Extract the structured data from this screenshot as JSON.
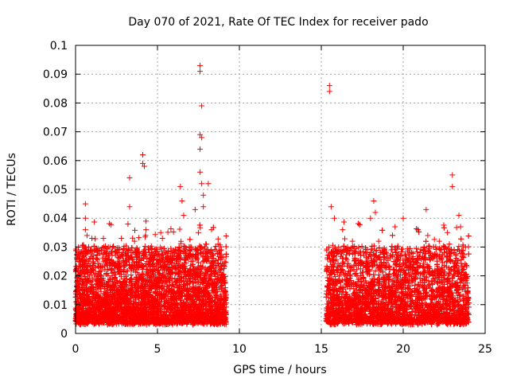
{
  "chart_data": {
    "type": "scatter",
    "title": "Day 070 of 2021, Rate Of TEC Index for receiver pado",
    "xlabel": "GPS time / hours",
    "ylabel": "ROTI / TECUs",
    "xlim": [
      0,
      25
    ],
    "ylim": [
      0,
      0.1
    ],
    "xticks": [
      0,
      5,
      10,
      15,
      20,
      25
    ],
    "xtick_labels": [
      "0",
      "5",
      "10",
      "15",
      "20",
      "25"
    ],
    "yticks": [
      0,
      0.01,
      0.02,
      0.03,
      0.04,
      0.05,
      0.06,
      0.07,
      0.08,
      0.09,
      0.1
    ],
    "ytick_labels": [
      "0",
      "0.01",
      "0.02",
      "0.03",
      "0.04",
      "0.05",
      "0.06",
      "0.07",
      "0.08",
      "0.09",
      "0.1"
    ],
    "grid": true,
    "marker": "+",
    "color": "#ff0000",
    "data_segments": [
      {
        "x_start": 0.0,
        "x_end": 9.2
      },
      {
        "x_start": 15.3,
        "x_end": 24.0
      }
    ],
    "series": [
      {
        "name": "ROTI",
        "points": [
          [
            0.2,
            0.025
          ],
          [
            0.6,
            0.045
          ],
          [
            0.6,
            0.04
          ],
          [
            0.6,
            0.036
          ],
          [
            0.7,
            0.034
          ],
          [
            1.0,
            0.033
          ],
          [
            1.7,
            0.033
          ],
          [
            2.0,
            0.03
          ],
          [
            2.8,
            0.033
          ],
          [
            3.2,
            0.038
          ],
          [
            3.3,
            0.044
          ],
          [
            3.3,
            0.054
          ],
          [
            3.6,
            0.032
          ],
          [
            4.1,
            0.062
          ],
          [
            4.1,
            0.059
          ],
          [
            4.2,
            0.058
          ],
          [
            4.3,
            0.039
          ],
          [
            4.3,
            0.036
          ],
          [
            5.2,
            0.035
          ],
          [
            5.3,
            0.033
          ],
          [
            5.8,
            0.027
          ],
          [
            6.4,
            0.051
          ],
          [
            6.5,
            0.046
          ],
          [
            6.6,
            0.041
          ],
          [
            7.0,
            0.03
          ],
          [
            7.3,
            0.043
          ],
          [
            7.5,
            0.035
          ],
          [
            7.6,
            0.093
          ],
          [
            7.6,
            0.091
          ],
          [
            7.7,
            0.079
          ],
          [
            7.6,
            0.069
          ],
          [
            7.7,
            0.068
          ],
          [
            7.6,
            0.064
          ],
          [
            7.6,
            0.056
          ],
          [
            7.7,
            0.052
          ],
          [
            7.8,
            0.048
          ],
          [
            7.8,
            0.044
          ],
          [
            8.1,
            0.052
          ],
          [
            8.3,
            0.036
          ],
          [
            8.7,
            0.031
          ],
          [
            8.9,
            0.029
          ],
          [
            15.5,
            0.086
          ],
          [
            15.5,
            0.084
          ],
          [
            15.6,
            0.044
          ],
          [
            15.8,
            0.04
          ],
          [
            16.3,
            0.036
          ],
          [
            16.6,
            0.03
          ],
          [
            16.9,
            0.032
          ],
          [
            18.0,
            0.04
          ],
          [
            18.2,
            0.046
          ],
          [
            18.3,
            0.042
          ],
          [
            18.5,
            0.032
          ],
          [
            19.5,
            0.037
          ],
          [
            20.0,
            0.04
          ],
          [
            20.4,
            0.028
          ],
          [
            20.9,
            0.036
          ],
          [
            21.4,
            0.043
          ],
          [
            21.5,
            0.034
          ],
          [
            22.2,
            0.032
          ],
          [
            22.7,
            0.035
          ],
          [
            23.0,
            0.055
          ],
          [
            23.0,
            0.051
          ],
          [
            23.4,
            0.041
          ],
          [
            23.5,
            0.037
          ],
          [
            23.8,
            0.03
          ]
        ]
      }
    ]
  }
}
